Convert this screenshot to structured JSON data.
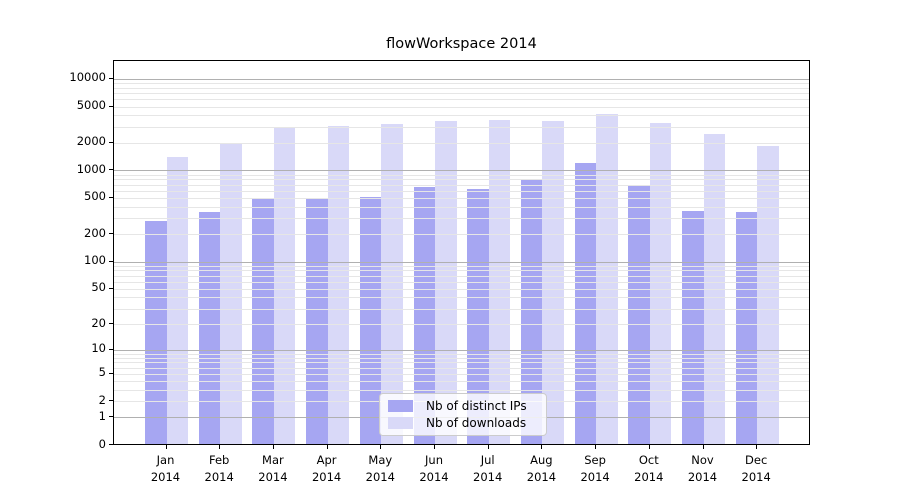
{
  "chart_data": {
    "type": "bar",
    "title": "flowWorkspace 2014",
    "y_scale": "log10(1+x)",
    "grid": true,
    "legend_position": "lower center",
    "x_tick_month_labels": [
      "Jan",
      "Feb",
      "Mar",
      "Apr",
      "May",
      "Jun",
      "Jul",
      "Aug",
      "Sep",
      "Oct",
      "Nov",
      "Dec"
    ],
    "x_tick_year": "2014",
    "y_tick_labels": [
      "0",
      "1",
      "2",
      "5",
      "10",
      "20",
      "50",
      "100",
      "200",
      "500",
      "1000",
      "2000",
      "5000",
      "10000"
    ],
    "ylim_top_value": 15700,
    "series": [
      {
        "name": "Nb of distinct IPs",
        "color": "#a6a6f2",
        "values": [
          280,
          350,
          495,
          490,
          515,
          660,
          630,
          790,
          1200,
          675,
          360,
          350
        ]
      },
      {
        "name": "Nb of downloads",
        "color": "#d9d9f8",
        "values": [
          1400,
          2000,
          3000,
          3030,
          3220,
          3450,
          3590,
          3470,
          4100,
          3330,
          2520,
          1850
        ]
      }
    ],
    "colors": {
      "major_gridline": "#b0b0b0",
      "minor_gridline": "#e6e6e6",
      "axis": "#000000",
      "legend_border": "#cccccc"
    }
  }
}
